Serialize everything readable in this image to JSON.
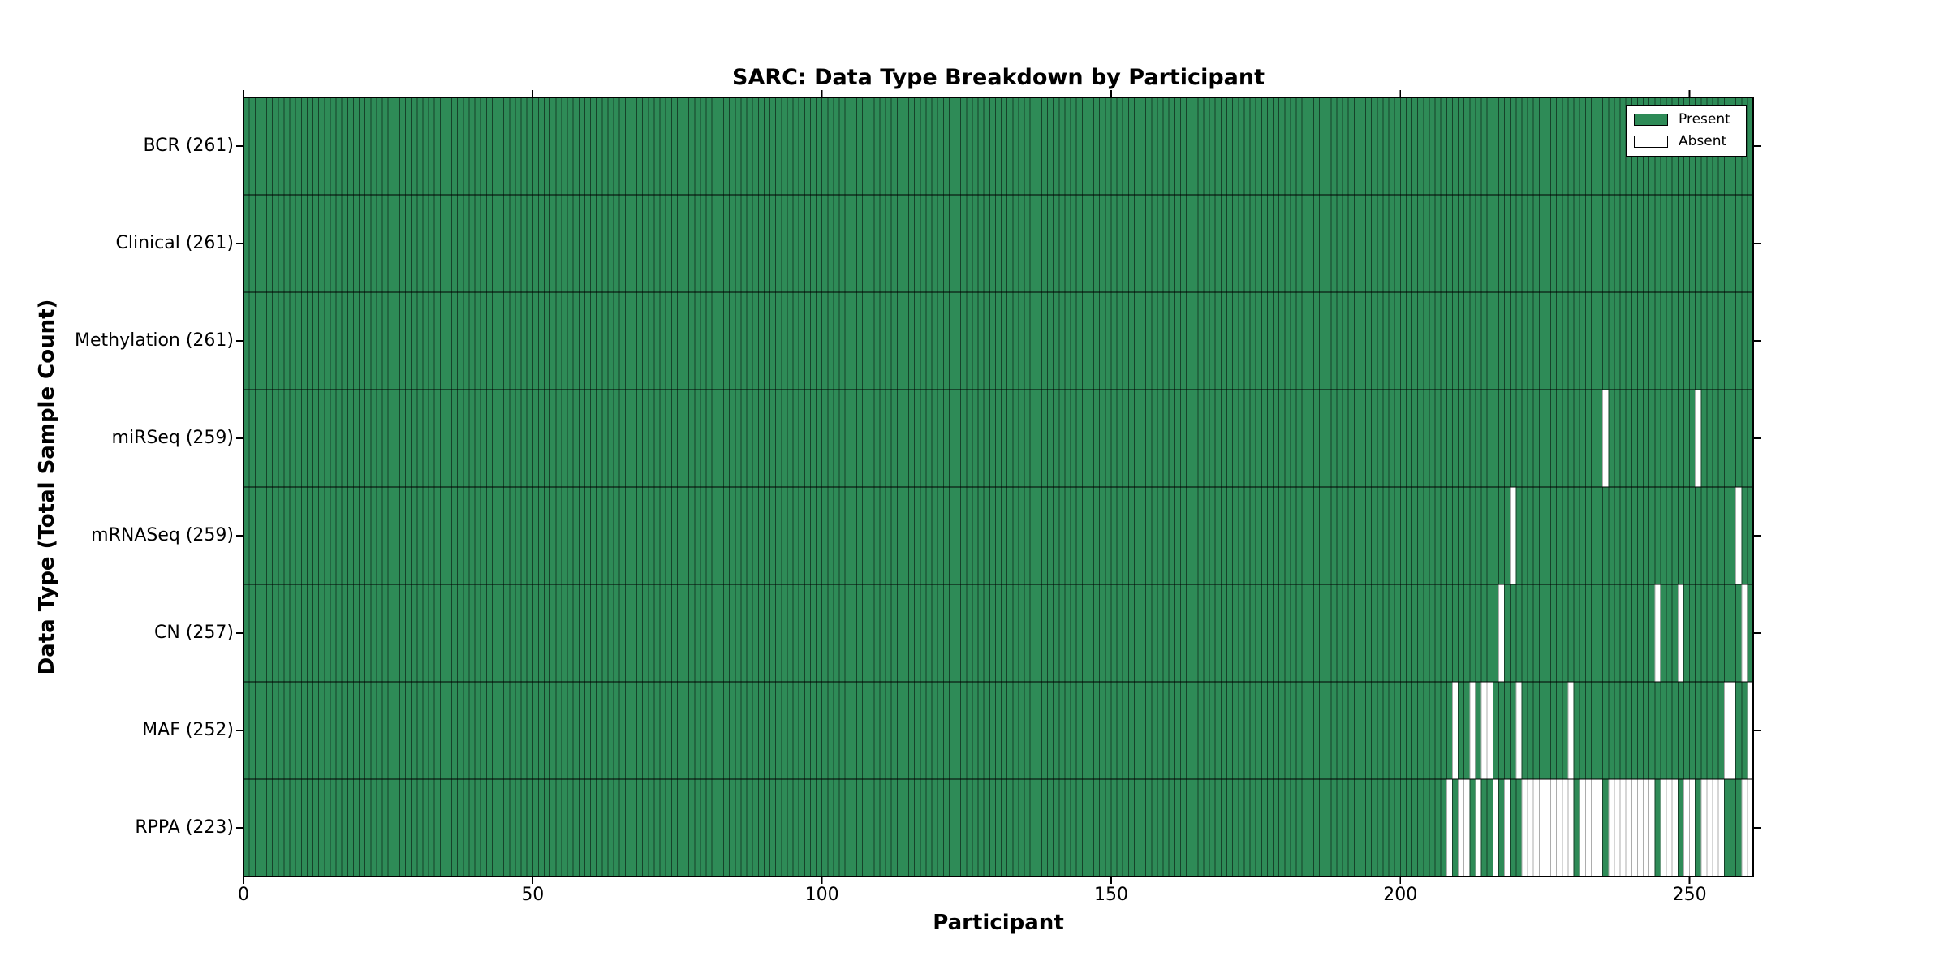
{
  "chart_data": {
    "type": "heatmap",
    "title": "SARC: Data Type Breakdown by Participant",
    "xlabel": "Participant",
    "ylabel": "Data Type (Total Sample Count)",
    "x_ticks": [
      0,
      50,
      100,
      150,
      200,
      250
    ],
    "xlim": [
      0,
      261
    ],
    "n_participants": 261,
    "grid": false,
    "legend_position": "upper-right",
    "legend": [
      {
        "label": "Present",
        "color": "#2E8B57"
      },
      {
        "label": "Absent",
        "color": "#FFFFFF"
      }
    ],
    "colors": {
      "present_fill": "#2E8B57",
      "present_edge": "#16422A",
      "absent_fill": "#FFFFFF",
      "absent_edge": "#ADADAD",
      "spine": "#000000",
      "row_separator": "#000000",
      "text": "#000000"
    },
    "rows": [
      {
        "label": "BCR (261)",
        "data_type": "BCR",
        "total_samples": 261,
        "absent_participants": []
      },
      {
        "label": "Clinical (261)",
        "data_type": "Clinical",
        "total_samples": 261,
        "absent_participants": []
      },
      {
        "label": "Methylation (261)",
        "data_type": "Methylation",
        "total_samples": 261,
        "absent_participants": []
      },
      {
        "label": "miRSeq (259)",
        "data_type": "miRSeq",
        "total_samples": 259,
        "absent_participants": [
          235,
          251
        ]
      },
      {
        "label": "mRNASeq (259)",
        "data_type": "mRNASeq",
        "total_samples": 259,
        "absent_participants": [
          219,
          258
        ]
      },
      {
        "label": "CN (257)",
        "data_type": "CN",
        "total_samples": 257,
        "absent_participants": [
          217,
          244,
          248,
          259
        ]
      },
      {
        "label": "MAF (252)",
        "data_type": "MAF",
        "total_samples": 252,
        "absent_participants": [
          209,
          212,
          214,
          215,
          220,
          229,
          256,
          257,
          260
        ]
      },
      {
        "label": "RPPA (223)",
        "data_type": "RPPA",
        "total_samples": 223,
        "absent_participants": [
          208,
          210,
          211,
          213,
          216,
          218,
          221,
          222,
          223,
          224,
          225,
          226,
          227,
          228,
          229,
          231,
          232,
          233,
          234,
          236,
          237,
          238,
          239,
          240,
          241,
          242,
          243,
          245,
          246,
          247,
          249,
          250,
          252,
          253,
          254,
          255,
          259,
          260
        ]
      }
    ]
  }
}
